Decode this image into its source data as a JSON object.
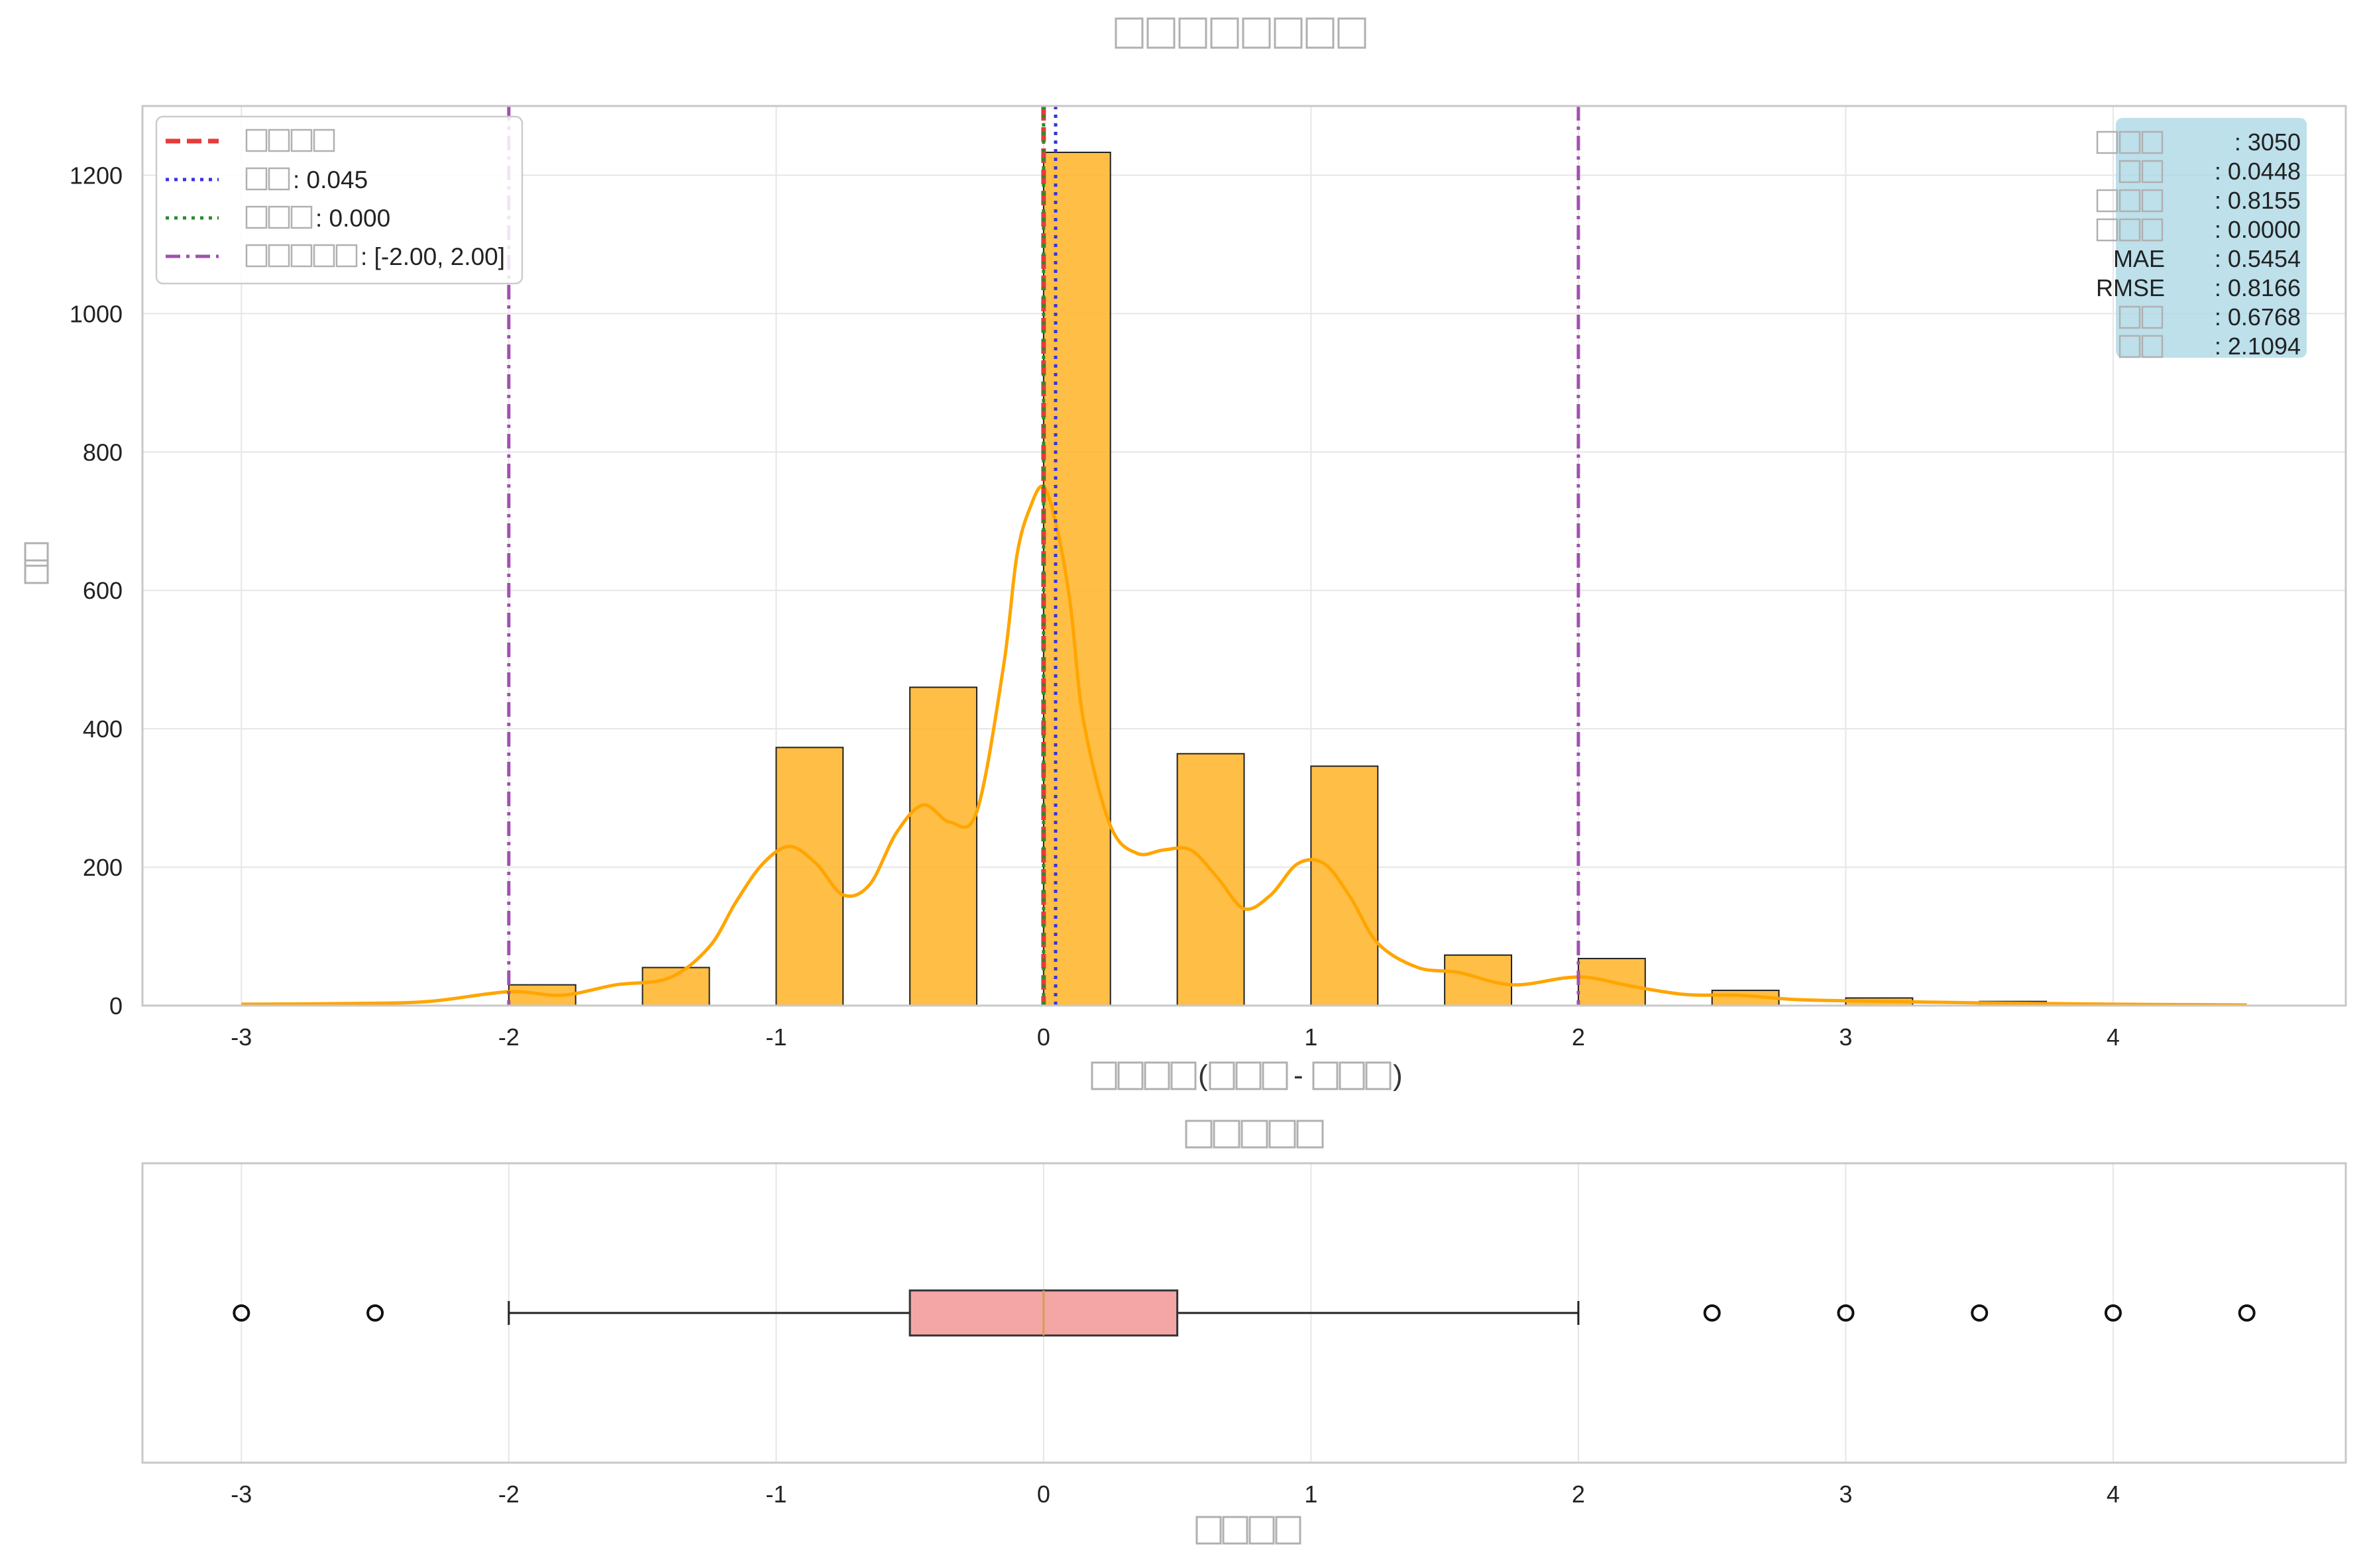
{
  "chart_data": [
    {
      "type": "bar",
      "title": "",
      "xlabel": "",
      "ylabel": "",
      "bin_width": 0.25,
      "bins": [
        {
          "x0": -3.0,
          "count": 0
        },
        {
          "x0": -2.0,
          "count": 30
        },
        {
          "x0": -1.5,
          "count": 55
        },
        {
          "x0": -1.0,
          "count": 373
        },
        {
          "x0": -0.5,
          "count": 460
        },
        {
          "x0": 0.0,
          "count": 1233
        },
        {
          "x0": 0.5,
          "count": 364
        },
        {
          "x0": 1.0,
          "count": 346
        },
        {
          "x0": 1.5,
          "count": 73
        },
        {
          "x0": 2.0,
          "count": 68
        },
        {
          "x0": 2.5,
          "count": 22
        },
        {
          "x0": 3.0,
          "count": 11
        },
        {
          "x0": 3.5,
          "count": 6
        },
        {
          "x0": 4.0,
          "count": 2
        }
      ],
      "kde": {
        "x": [
          -3.0,
          -2.6,
          -2.3,
          -2.0,
          -1.8,
          -1.6,
          -1.4,
          -1.25,
          -1.15,
          -1.05,
          -0.95,
          -0.85,
          -0.75,
          -0.65,
          -0.55,
          -0.45,
          -0.35,
          -0.25,
          -0.15,
          -0.1,
          -0.05,
          0.0,
          0.05,
          0.1,
          0.15,
          0.25,
          0.35,
          0.45,
          0.55,
          0.65,
          0.75,
          0.85,
          0.95,
          1.05,
          1.15,
          1.25,
          1.4,
          1.55,
          1.75,
          1.95,
          2.05,
          2.2,
          2.4,
          2.6,
          2.8,
          3.0,
          3.5,
          4.0,
          4.5
        ],
        "y": [
          2,
          3,
          6,
          20,
          15,
          30,
          40,
          85,
          150,
          205,
          230,
          205,
          160,
          175,
          250,
          290,
          265,
          280,
          490,
          650,
          720,
          750,
          690,
          580,
          410,
          260,
          220,
          225,
          225,
          185,
          140,
          160,
          205,
          205,
          155,
          90,
          55,
          48,
          30,
          40,
          40,
          28,
          16,
          15,
          9,
          7,
          4,
          2,
          1
        ]
      },
      "xlim": [
        -3.37,
        4.87
      ],
      "ylim": [
        0,
        1300
      ],
      "x_ticks": [
        "-3",
        "-2",
        "-1",
        "0",
        "1",
        "2",
        "3",
        "4"
      ],
      "x_tick_values": [
        -3,
        -2,
        -1,
        0,
        1,
        2,
        3,
        4
      ],
      "y_ticks": [
        "0",
        "200",
        "400",
        "600",
        "800",
        "1000",
        "1200"
      ],
      "y_tick_values": [
        0,
        200,
        400,
        600,
        800,
        1000,
        1200
      ],
      "grid": true,
      "bar_color": "#FFB732",
      "kde_color": "#FFA500",
      "reference_lines": [
        {
          "x": 0.0,
          "style": "dashed",
          "color": "#E83A3A"
        },
        {
          "x": 0.045,
          "style": "dotted",
          "color": "#3535DD"
        },
        {
          "x": 0.0,
          "style": "dotted",
          "color": "#2A8C2A"
        },
        {
          "x": -2.0,
          "style": "dashdot",
          "color": "#A050B0"
        },
        {
          "x": 2.0,
          "style": "dashdot",
          "color": "#A050B0"
        }
      ],
      "legend": {
        "placement": "top-left",
        "entries": [
          {
            "label": "",
            "value": "",
            "style": "dashed",
            "color": "#E83A3A"
          },
          {
            "label": "",
            "value": ": 0.045",
            "style": "dotted",
            "color": "#3535DD"
          },
          {
            "label": "",
            "value": ": 0.000",
            "style": "dotted",
            "color": "#2A8C2A"
          },
          {
            "label": "",
            "value": ": [-2.00, 2.00]",
            "style": "dashdot",
            "color": "#A050B0"
          }
        ]
      },
      "stats_box": {
        "placement": "top-right",
        "background": "#ADD8E6",
        "lines": [
          {
            "label": "",
            "value": ": 3050"
          },
          {
            "label": "",
            "value": ": 0.0448"
          },
          {
            "label": "",
            "value": ": 0.8155"
          },
          {
            "label": "",
            "value": ": 0.0000"
          },
          {
            "label": "MAE",
            "value": ": 0.5454"
          },
          {
            "label": "RMSE",
            "value": ": 0.8166"
          },
          {
            "label": "",
            "value": ": 0.6768"
          },
          {
            "label": "",
            "value": ": 2.1094"
          }
        ]
      }
    },
    {
      "type": "box",
      "title": "",
      "xlabel": "",
      "xlim": [
        -3.37,
        4.87
      ],
      "x_ticks": [
        "-3",
        "-2",
        "-1",
        "0",
        "1",
        "2",
        "3",
        "4"
      ],
      "x_tick_values": [
        -3,
        -2,
        -1,
        0,
        1,
        2,
        3,
        4
      ],
      "grid": true,
      "box": {
        "whisker_low": -2.0,
        "q1": -0.5,
        "median": 0.0,
        "q3": 0.5,
        "whisker_high": 2.0
      },
      "outliers": [
        -3.0,
        -2.5,
        2.5,
        3.0,
        3.5,
        4.0,
        4.5
      ],
      "box_color": "#F4A6A6",
      "median_color": "#D2A050"
    }
  ]
}
